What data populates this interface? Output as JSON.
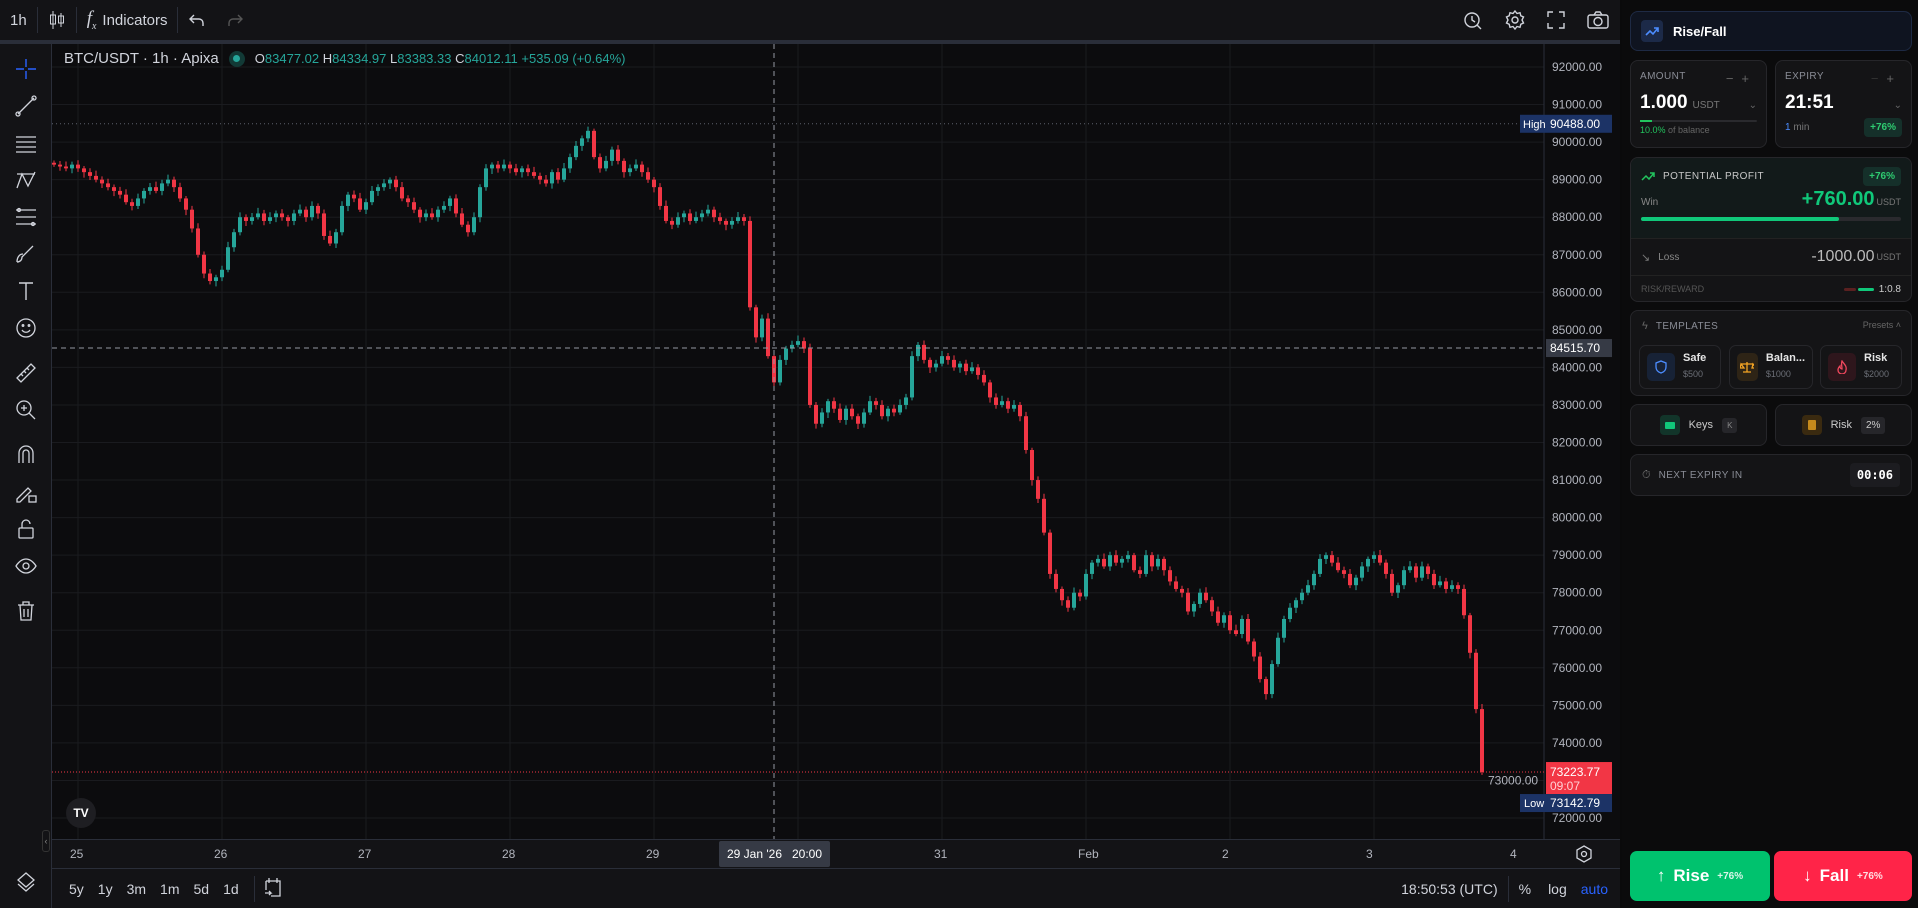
{
  "toolbar": {
    "interval": "1h",
    "indicators_label": "Indicators"
  },
  "legend": {
    "symbol": "BTC/USDT · 1h · Apixa",
    "o_label": "O",
    "o": "83477.02",
    "h_label": "H",
    "h": "84334.97",
    "l_label": "L",
    "l": "83383.33",
    "c_label": "C",
    "c": "84012.11",
    "change": "+535.09 (+0.64%)"
  },
  "price_axis": {
    "ticks": [
      "92000.00",
      "91000.00",
      "90000.00",
      "89000.00",
      "88000.00",
      "87000.00",
      "86000.00",
      "85000.00",
      "84000.00",
      "83000.00",
      "82000.00",
      "81000.00",
      "80000.00",
      "79000.00",
      "78000.00",
      "77000.00",
      "76000.00",
      "75000.00",
      "74000.00",
      "73000.00",
      "72000.00"
    ],
    "high_label": "High",
    "high_value": "90488.00",
    "crosshair_value": "84515.70",
    "last_value": "73223.77",
    "countdown": "09:07",
    "low_label": "Low",
    "low_value": "73142.79"
  },
  "time_axis": {
    "ticks": [
      "25",
      "26",
      "27",
      "28",
      "29",
      "31",
      "Feb",
      "2",
      "3",
      "4"
    ],
    "crosshair_label": "29 Jan '26   20:00"
  },
  "bottombar": {
    "ranges": [
      "5y",
      "1y",
      "3m",
      "1m",
      "5d",
      "1d"
    ],
    "clock": "18:50:53 (UTC)",
    "percent": "%",
    "log": "log",
    "auto": "auto"
  },
  "colors": {
    "up": "#26a69a",
    "down": "#f23645",
    "accent": "#2962ff",
    "rise": "#00c26e",
    "fall": "#ff2448"
  },
  "chart_data": {
    "type": "candlestick",
    "symbol": "BTC/USDT",
    "interval": "1h",
    "start": "2026-01-24 20:00",
    "ylim": [
      71800,
      92300
    ],
    "high": 90488.0,
    "low": 73142.79,
    "crosshair_price": 84515.7,
    "crosshair_time": "2026-01-29 20:00",
    "last": 73223.77,
    "closes": [
      89400,
      89350,
      89300,
      89400,
      89300,
      89200,
      89100,
      89000,
      88900,
      88800,
      88700,
      88600,
      88400,
      88300,
      88500,
      88700,
      88800,
      88700,
      88900,
      89000,
      88800,
      88500,
      88200,
      87700,
      87000,
      86500,
      86300,
      86400,
      86600,
      87200,
      87600,
      88000,
      87900,
      88000,
      88100,
      87900,
      88000,
      88100,
      88000,
      87900,
      88100,
      88200,
      88000,
      88300,
      88100,
      87500,
      87300,
      87600,
      88300,
      88600,
      88500,
      88200,
      88400,
      88700,
      88800,
      88900,
      89000,
      88800,
      88500,
      88400,
      88200,
      88000,
      88100,
      88000,
      88200,
      88300,
      88500,
      88100,
      87800,
      87600,
      88000,
      88800,
      89300,
      89400,
      89300,
      89400,
      89300,
      89200,
      89300,
      89200,
      89100,
      89000,
      88900,
      89200,
      89000,
      89300,
      89600,
      89900,
      90100,
      90300,
      89600,
      89300,
      89500,
      89800,
      89500,
      89200,
      89300,
      89400,
      89200,
      89000,
      88800,
      88300,
      87900,
      87800,
      88000,
      88100,
      87900,
      88000,
      88100,
      88200,
      88000,
      87900,
      87800,
      87900,
      88000,
      87900,
      85600,
      84800,
      85300,
      84300,
      83600,
      84200,
      84500,
      84600,
      84700,
      84500,
      83000,
      82500,
      82800,
      83100,
      82900,
      82600,
      82900,
      82700,
      82500,
      82800,
      83100,
      83000,
      82700,
      82900,
      82800,
      83000,
      83200,
      84300,
      84600,
      84200,
      84000,
      84100,
      84300,
      84200,
      84000,
      84100,
      83900,
      84000,
      83800,
      83600,
      83200,
      83000,
      83100,
      82900,
      83000,
      82700,
      81800,
      81000,
      80500,
      79600,
      78500,
      78100,
      77800,
      77600,
      78000,
      77900,
      78500,
      78800,
      78900,
      78700,
      79000,
      78800,
      78900,
      79000,
      78600,
      78500,
      79000,
      78700,
      78900,
      78600,
      78300,
      78100,
      78000,
      77500,
      77700,
      78000,
      77800,
      77500,
      77200,
      77400,
      77000,
      76900,
      77300,
      76700,
      76300,
      75700,
      75300,
      76100,
      76800,
      77300,
      77600,
      77800,
      78000,
      78200,
      78500,
      78900,
      79000,
      78800,
      78600,
      78500,
      78200,
      78400,
      78700,
      78900,
      79000,
      78800,
      78500,
      78000,
      78200,
      78600,
      78700,
      78400,
      78700,
      78500,
      78200,
      78300,
      78100,
      78200,
      78100,
      77400,
      76400,
      74900,
      73223.77
    ]
  },
  "panel": {
    "mode": "Rise/Fall",
    "amount": {
      "label": "AMOUNT",
      "value": "1.000",
      "unit": "USDT",
      "balance_pct": "10.0%",
      "balance_text": "of balance",
      "fill": 0.1
    },
    "expiry": {
      "label": "EXPIRY",
      "value": "21:51",
      "duration_num": "1",
      "duration_unit": "min",
      "payout": "+76%"
    },
    "profit": {
      "label": "POTENTIAL PROFIT",
      "badge": "+76%",
      "win_label": "Win",
      "win_value": "+760.00",
      "unit": "USDT",
      "win_fill": 0.76,
      "loss_label": "Loss",
      "loss_value": "-1000.00",
      "rr_label": "RISK/REWARD",
      "rr_value": "1:0.8"
    },
    "templates": {
      "label": "TEMPLATES",
      "presets": "Presets",
      "items": [
        {
          "name": "Safe",
          "amount": "$500"
        },
        {
          "name": "Balan...",
          "amount": "$1000"
        },
        {
          "name": "Risk",
          "amount": "$2000"
        }
      ]
    },
    "keys": {
      "label": "Keys",
      "key": "K"
    },
    "risk": {
      "label": "Risk",
      "value": "2%"
    },
    "next_expiry": {
      "label": "NEXT EXPIRY IN",
      "value": "00:06"
    },
    "rise": {
      "label": "Rise",
      "pct": "+76%"
    },
    "fall": {
      "label": "Fall",
      "pct": "+76%"
    }
  }
}
